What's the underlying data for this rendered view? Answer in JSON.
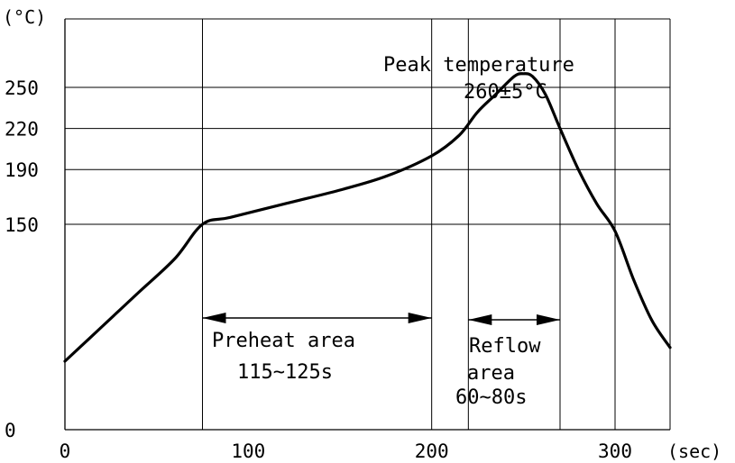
{
  "chart_data": {
    "type": "line",
    "xlabel": "(sec)",
    "ylabel": "(°C)",
    "xlim": [
      0,
      330
    ],
    "ylim": [
      0,
      300
    ],
    "x_ticks": [
      0,
      100,
      200,
      300
    ],
    "y_ticks": [
      0,
      150,
      190,
      220,
      250
    ],
    "x_tick_labels": [
      "0",
      "100",
      "200",
      "300"
    ],
    "y_tick_labels": [
      "0",
      "150",
      "190",
      "220",
      "250"
    ],
    "vertical_gridlines": [
      75,
      200,
      220,
      270,
      300,
      330
    ],
    "horizontal_gridlines": [
      150,
      190,
      220,
      250,
      300
    ],
    "series": [
      {
        "x": [
          0,
          20,
          40,
          60,
          75,
          90,
          120,
          150,
          175,
          200,
          215,
          225,
          235,
          245,
          250,
          255,
          262,
          270,
          280,
          290,
          300,
          310,
          320,
          330
        ],
        "y": [
          50,
          75,
          100,
          125,
          150,
          155,
          165,
          175,
          185,
          200,
          215,
          232,
          245,
          258,
          260,
          258,
          245,
          220,
          190,
          165,
          145,
          110,
          80,
          60
        ]
      }
    ],
    "annotations": {
      "peak_title": "Peak temperature",
      "peak_value": "260±5°C",
      "preheat_title": "Preheat area",
      "preheat_time": "115~125s",
      "reflow_title": "Reflow",
      "reflow_sub": "area",
      "reflow_time": "60~80s"
    },
    "grid": true,
    "legend": "none"
  },
  "colors": {
    "line": "#000000",
    "grid": "#000000",
    "background": "#ffffff"
  }
}
